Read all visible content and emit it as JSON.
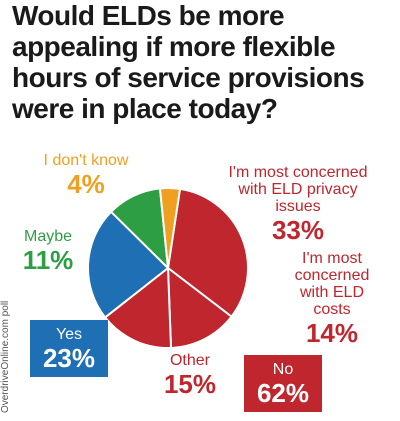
{
  "chart_data": {
    "type": "pie",
    "title": "Would ELDs be more appealing if more flexible hours of service provisions were in place today?",
    "slices": [
      {
        "name": "I'm most concerned with ELD privacy issues",
        "value": 33,
        "color": "#c0262d"
      },
      {
        "name": "I'm most concerned with ELD costs",
        "value": 14,
        "color": "#c0262d"
      },
      {
        "name": "Other",
        "value": 15,
        "color": "#c0262d"
      },
      {
        "name": "Yes",
        "value": 23,
        "color": "#1f6fb5"
      },
      {
        "name": "Maybe",
        "value": 11,
        "color": "#2e9e44"
      },
      {
        "name": "I don't know",
        "value": 4,
        "color": "#f0a020"
      }
    ],
    "group_labels": [
      {
        "name": "No",
        "value": "62%"
      }
    ]
  },
  "labels": {
    "privacy_text": "I'm most concerned with ELD privacy issues",
    "privacy_pct": "33%",
    "costs_text": "I'm most concerned with ELD costs",
    "costs_pct": "14%",
    "other_text": "Other",
    "other_pct": "15%",
    "no_text": "No",
    "no_pct": "62%",
    "yes_text": "Yes",
    "yes_pct": "23%",
    "maybe_text": "Maybe",
    "maybe_pct": "11%",
    "dontknow_text": "I don't know",
    "dontknow_pct": "4%"
  },
  "source": "OverdriveOnline.com poll",
  "colors": {
    "red": "#c0262d",
    "blue": "#1f6fb5",
    "green": "#2e9e44",
    "orange": "#f0a020"
  }
}
